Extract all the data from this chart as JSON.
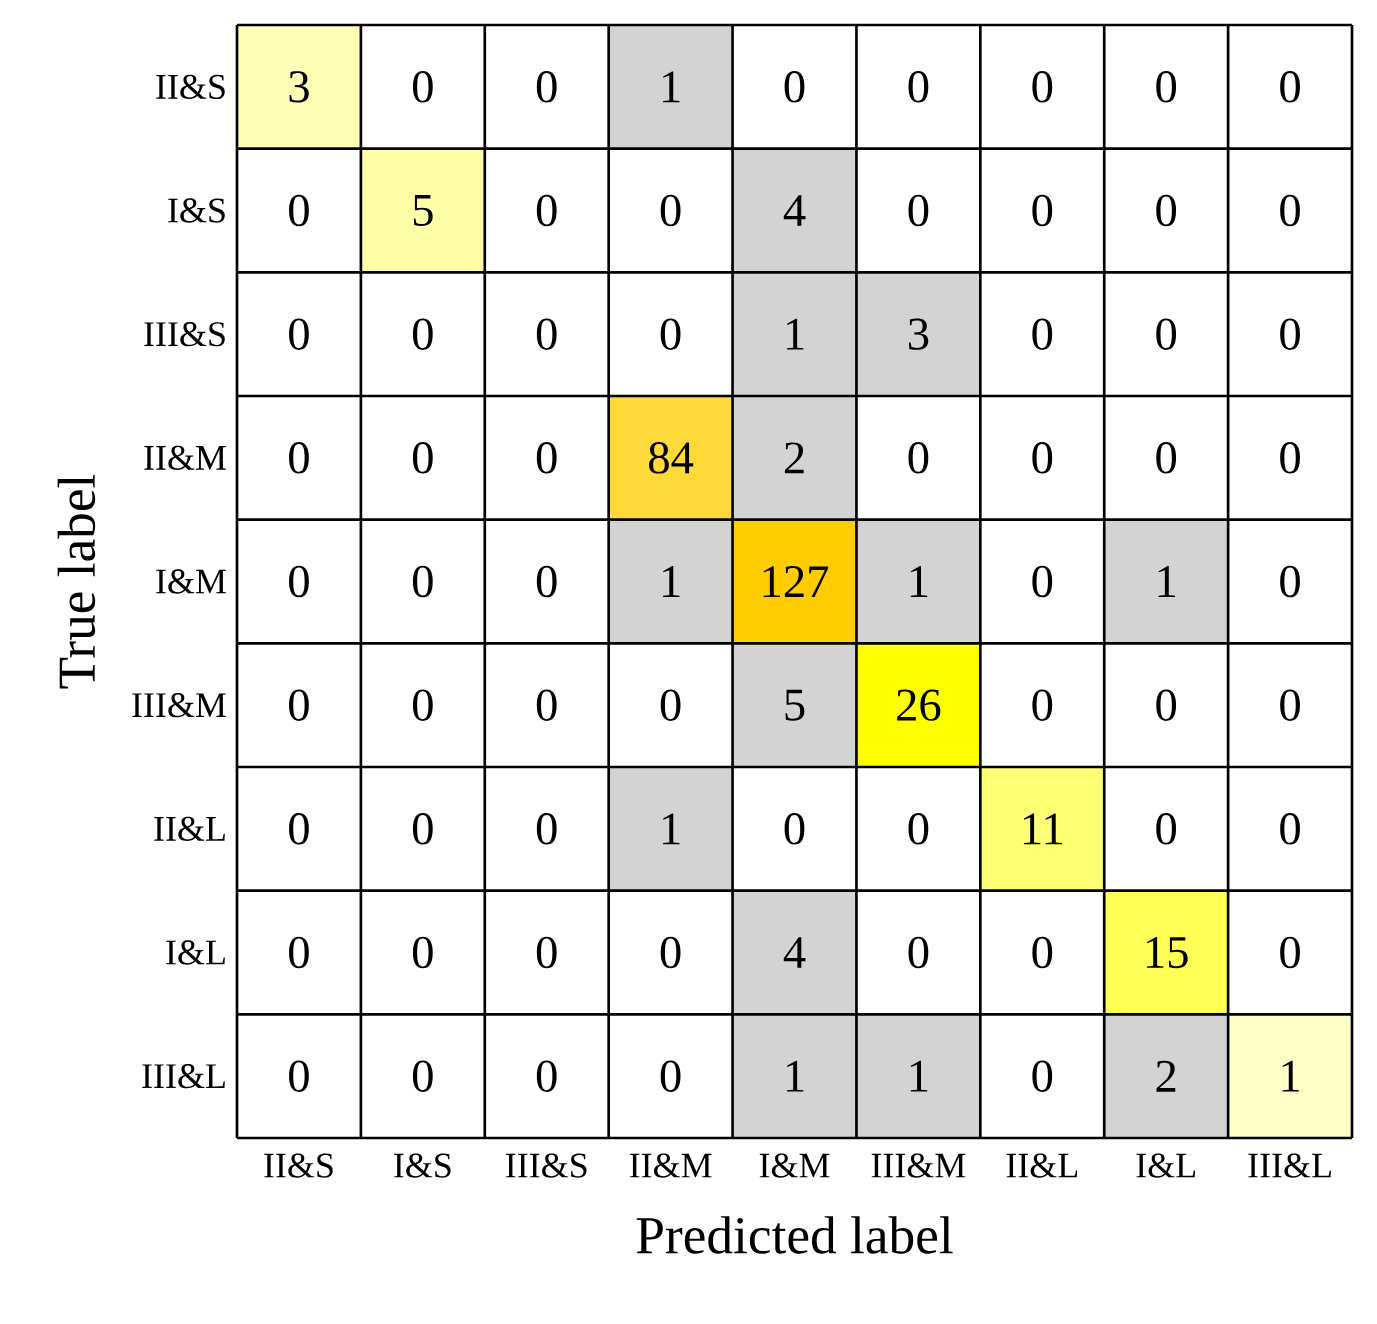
{
  "chart_data": {
    "type": "heatmap",
    "xlabel": "Predicted label",
    "ylabel": "True label",
    "categories": [
      "II&S",
      "I&S",
      "III&S",
      "II&M",
      "I&M",
      "III&M",
      "II&L",
      "I&L",
      "III&L"
    ],
    "y_categories": [
      "II&S",
      "I&S",
      "III&S",
      "II&M",
      "I&M",
      "III&M",
      "II&L",
      "I&L",
      "III&L"
    ],
    "cells": [
      [
        3,
        0,
        0,
        1,
        0,
        0,
        0,
        0,
        0
      ],
      [
        0,
        5,
        0,
        0,
        4,
        0,
        0,
        0,
        0
      ],
      [
        0,
        0,
        0,
        0,
        1,
        3,
        0,
        0,
        0
      ],
      [
        0,
        0,
        0,
        84,
        2,
        0,
        0,
        0,
        0
      ],
      [
        0,
        0,
        0,
        1,
        127,
        1,
        0,
        1,
        0
      ],
      [
        0,
        0,
        0,
        0,
        5,
        26,
        0,
        0,
        0
      ],
      [
        0,
        0,
        0,
        1,
        0,
        0,
        11,
        0,
        0
      ],
      [
        0,
        0,
        0,
        0,
        4,
        0,
        0,
        15,
        0
      ],
      [
        0,
        0,
        0,
        0,
        1,
        1,
        0,
        2,
        1
      ]
    ],
    "data_labels": true
  }
}
